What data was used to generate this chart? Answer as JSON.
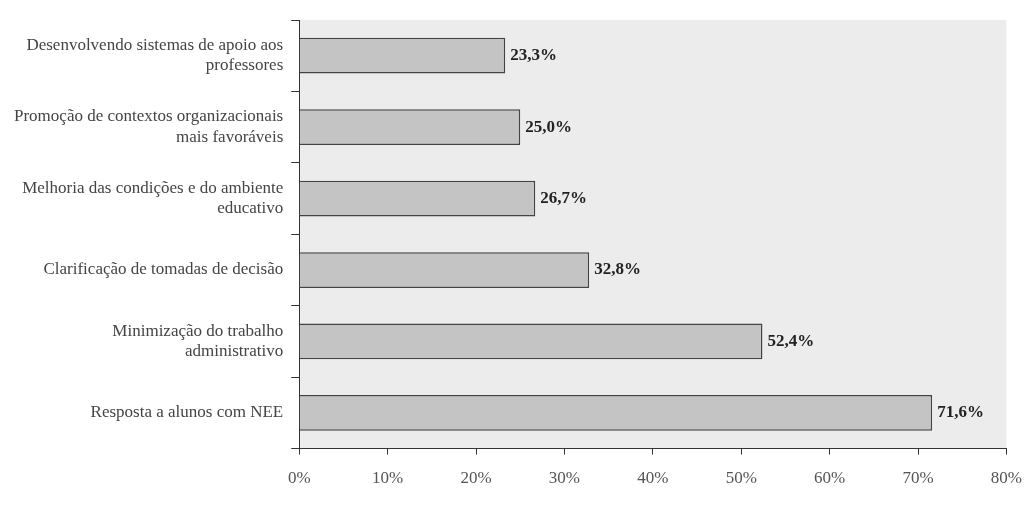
{
  "chart_data": {
    "type": "bar",
    "orientation": "horizontal",
    "categories": [
      "Desenvolvendo sistemas de apoio aos professores",
      "Promoção de contextos organizacionais mais favoráveis",
      "Melhoria das condições e do ambiente educativo",
      "Clarificação de tomadas de decisão",
      "Minimização do trabalho administrativo",
      "Resposta a alunos com NEE"
    ],
    "values": [
      23.3,
      25.0,
      26.7,
      32.8,
      52.4,
      71.6
    ],
    "value_labels": [
      "23,3%",
      "25,0%",
      "26,7%",
      "32,8%",
      "52,4%",
      "71,6%"
    ],
    "color": "#c4c4c4",
    "xlim": [
      0,
      80
    ],
    "xticks": [
      {
        "value": 0,
        "label": "0%"
      },
      {
        "value": 10,
        "label": "10%"
      },
      {
        "value": 20,
        "label": "20%"
      },
      {
        "value": 30,
        "label": "30%"
      },
      {
        "value": 40,
        "label": "40%"
      },
      {
        "value": 50,
        "label": "50%"
      },
      {
        "value": 60,
        "label": "60%"
      },
      {
        "value": 70,
        "label": "70%"
      },
      {
        "value": 80,
        "label": "80%"
      }
    ],
    "grid": false,
    "legend": false
  }
}
